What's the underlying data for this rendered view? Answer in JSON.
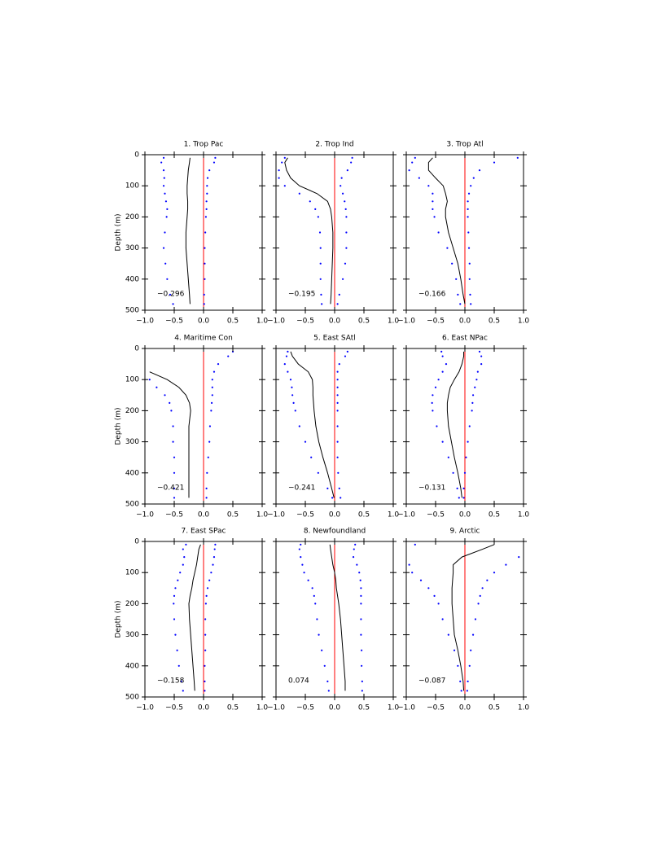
{
  "chart_data": [
    {
      "type": "line",
      "title": "1. Trop Pac",
      "annotation": "−0.296",
      "ylabel": "Depth (m)",
      "ytick_labels": true,
      "depths": [
        10,
        25,
        50,
        75,
        100,
        125,
        150,
        175,
        200,
        250,
        300,
        350,
        400,
        450,
        480
      ],
      "series": [
        {
          "color": "#0000ff",
          "style": "dotted",
          "values": [
            -0.68,
            -0.72,
            -0.68,
            -0.67,
            -0.68,
            -0.66,
            -0.64,
            -0.62,
            -0.63,
            -0.66,
            -0.68,
            -0.65,
            -0.62,
            -0.57,
            -0.52
          ]
        },
        {
          "color": "#000000",
          "style": "solid",
          "values": [
            -0.23,
            -0.24,
            -0.26,
            -0.27,
            -0.28,
            -0.28,
            -0.27,
            -0.27,
            -0.28,
            -0.3,
            -0.3,
            -0.28,
            -0.26,
            -0.24,
            -0.23
          ]
        },
        {
          "color": "#0000ff",
          "style": "dotted",
          "values": [
            0.2,
            0.18,
            0.1,
            0.07,
            0.06,
            0.06,
            0.05,
            0.05,
            0.04,
            0.03,
            0.02,
            0.02,
            0.02,
            0.01,
            0.01
          ]
        }
      ],
      "vline": 0,
      "vline_color": "#ff0000",
      "xlim": [
        -1,
        1
      ],
      "xticks": [
        {
          "value": -1,
          "label": "−1.0"
        },
        {
          "value": -0.5,
          "label": "−0.5"
        },
        {
          "value": 0,
          "label": "0.0"
        },
        {
          "value": 0.5,
          "label": "0.5"
        },
        {
          "value": 1,
          "label": "1.0"
        }
      ],
      "ylim": [
        500,
        0
      ],
      "yticks": [
        0,
        100,
        200,
        300,
        400,
        500
      ]
    },
    {
      "type": "line",
      "title": "2. Trop Ind",
      "annotation": "−0.195",
      "ytick_labels": false,
      "depths": [
        10,
        25,
        50,
        75,
        100,
        125,
        150,
        175,
        200,
        250,
        300,
        350,
        400,
        450,
        480
      ],
      "series": [
        {
          "color": "#0000ff",
          "style": "dotted",
          "values": [
            -0.85,
            -0.9,
            -0.95,
            -0.95,
            -0.85,
            -0.6,
            -0.42,
            -0.33,
            -0.28,
            -0.25,
            -0.24,
            -0.24,
            -0.24,
            -0.23,
            -0.22
          ]
        },
        {
          "color": "#000000",
          "style": "solid",
          "values": [
            -0.8,
            -0.85,
            -0.82,
            -0.75,
            -0.6,
            -0.3,
            -0.12,
            -0.07,
            -0.05,
            -0.03,
            -0.03,
            -0.04,
            -0.05,
            -0.06,
            -0.07
          ]
        },
        {
          "color": "#0000ff",
          "style": "dotted",
          "values": [
            0.3,
            0.28,
            0.22,
            0.12,
            0.1,
            0.14,
            0.17,
            0.19,
            0.2,
            0.2,
            0.2,
            0.18,
            0.14,
            0.08,
            0.05
          ]
        }
      ],
      "vline": 0,
      "vline_color": "#ff0000",
      "xlim": [
        -1,
        1
      ],
      "xticks": [
        {
          "value": -1,
          "label": "−1.0"
        },
        {
          "value": -0.5,
          "label": "−0.5"
        },
        {
          "value": 0,
          "label": "0.0"
        },
        {
          "value": 0.5,
          "label": "0.5"
        },
        {
          "value": 1,
          "label": "1.0"
        }
      ],
      "ylim": [
        500,
        0
      ],
      "yticks": [
        0,
        100,
        200,
        300,
        400,
        500
      ]
    },
    {
      "type": "line",
      "title": "3. Trop Atl",
      "annotation": "−0.166",
      "ytick_labels": false,
      "depths": [
        10,
        25,
        50,
        75,
        100,
        125,
        150,
        175,
        200,
        250,
        300,
        350,
        400,
        450,
        480
      ],
      "series": [
        {
          "color": "#0000ff",
          "style": "dotted",
          "values": [
            -0.85,
            -0.9,
            -0.95,
            -0.78,
            -0.62,
            -0.55,
            -0.55,
            -0.55,
            -0.52,
            -0.45,
            -0.3,
            -0.22,
            -0.15,
            -0.12,
            -0.08
          ]
        },
        {
          "color": "#000000",
          "style": "solid",
          "values": [
            -0.55,
            -0.62,
            -0.62,
            -0.5,
            -0.37,
            -0.33,
            -0.3,
            -0.33,
            -0.33,
            -0.28,
            -0.2,
            -0.12,
            -0.07,
            -0.03,
            0.0
          ]
        },
        {
          "color": "#0000ff",
          "style": "dotted",
          "values": [
            0.9,
            0.5,
            0.25,
            0.15,
            0.1,
            0.07,
            0.05,
            0.05,
            0.05,
            0.06,
            0.07,
            0.08,
            0.08,
            0.09,
            0.1
          ]
        }
      ],
      "vline": 0,
      "vline_color": "#ff0000",
      "xlim": [
        -1,
        1
      ],
      "xticks": [
        {
          "value": -1,
          "label": "−1.0"
        },
        {
          "value": -0.5,
          "label": "−0.5"
        },
        {
          "value": 0,
          "label": "0.0"
        },
        {
          "value": 0.5,
          "label": "0.5"
        },
        {
          "value": 1,
          "label": "1.0"
        }
      ],
      "ylim": [
        500,
        0
      ],
      "yticks": [
        0,
        100,
        200,
        300,
        400,
        500
      ]
    },
    {
      "type": "line",
      "title": "4. Maritime Con",
      "annotation": "−0.421",
      "ylabel": "Depth (m)",
      "ytick_labels": true,
      "depths": [
        10,
        25,
        50,
        75,
        100,
        125,
        150,
        175,
        200,
        250,
        300,
        350,
        400,
        450,
        480
      ],
      "series": [
        {
          "color": "#0000ff",
          "style": "dotted",
          "values": [
            null,
            null,
            null,
            null,
            -0.92,
            -0.8,
            -0.66,
            -0.58,
            -0.55,
            -0.52,
            -0.52,
            -0.5,
            -0.5,
            -0.5,
            -0.5
          ]
        },
        {
          "color": "#000000",
          "style": "solid",
          "values": [
            null,
            null,
            null,
            -0.92,
            -0.62,
            -0.42,
            -0.3,
            -0.24,
            -0.22,
            -0.25,
            -0.25,
            -0.25,
            -0.25,
            -0.25,
            -0.25
          ]
        },
        {
          "color": "#0000ff",
          "style": "dotted",
          "values": [
            0.5,
            0.42,
            0.25,
            0.18,
            0.15,
            0.15,
            0.15,
            0.14,
            0.13,
            0.11,
            0.1,
            0.08,
            0.06,
            0.05,
            0.05
          ]
        }
      ],
      "vline": 0,
      "vline_color": "#ff0000",
      "xlim": [
        -1,
        1
      ],
      "xticks": [
        {
          "value": -1,
          "label": "−1.0"
        },
        {
          "value": -0.5,
          "label": "−0.5"
        },
        {
          "value": 0,
          "label": "0.0"
        },
        {
          "value": 0.5,
          "label": "0.5"
        },
        {
          "value": 1,
          "label": "1.0"
        }
      ],
      "ylim": [
        500,
        0
      ],
      "yticks": [
        0,
        100,
        200,
        300,
        400,
        500
      ]
    },
    {
      "type": "line",
      "title": "5. East SAtl",
      "annotation": "−0.241",
      "ytick_labels": false,
      "depths": [
        10,
        25,
        50,
        75,
        100,
        125,
        150,
        175,
        200,
        250,
        300,
        350,
        400,
        450,
        480
      ],
      "series": [
        {
          "color": "#0000ff",
          "style": "dotted",
          "values": [
            -0.8,
            -0.82,
            -0.85,
            -0.8,
            -0.75,
            -0.73,
            -0.72,
            -0.7,
            -0.67,
            -0.6,
            -0.5,
            -0.4,
            -0.28,
            -0.12,
            -0.04
          ]
        },
        {
          "color": "#000000",
          "style": "solid",
          "values": [
            -0.75,
            -0.72,
            -0.62,
            -0.45,
            -0.38,
            -0.37,
            -0.37,
            -0.36,
            -0.35,
            -0.32,
            -0.27,
            -0.2,
            -0.12,
            -0.05,
            -0.01
          ]
        },
        {
          "color": "#0000ff",
          "style": "dotted",
          "values": [
            0.22,
            0.18,
            0.08,
            0.05,
            0.05,
            0.05,
            0.05,
            0.05,
            0.05,
            0.05,
            0.05,
            0.05,
            0.06,
            0.08,
            0.1
          ]
        }
      ],
      "vline": 0,
      "vline_color": "#ff0000",
      "xlim": [
        -1,
        1
      ],
      "xticks": [
        {
          "value": -1,
          "label": "−1.0"
        },
        {
          "value": -0.5,
          "label": "−0.5"
        },
        {
          "value": 0,
          "label": "0.0"
        },
        {
          "value": 0.5,
          "label": "0.5"
        },
        {
          "value": 1,
          "label": "1.0"
        }
      ],
      "ylim": [
        500,
        0
      ],
      "yticks": [
        0,
        100,
        200,
        300,
        400,
        500
      ]
    },
    {
      "type": "line",
      "title": "6. East NPac",
      "annotation": "−0.131",
      "ytick_labels": false,
      "depths": [
        10,
        25,
        50,
        75,
        100,
        125,
        150,
        175,
        200,
        250,
        300,
        350,
        400,
        450,
        480
      ],
      "series": [
        {
          "color": "#0000ff",
          "style": "dotted",
          "values": [
            -0.4,
            -0.38,
            -0.32,
            -0.38,
            -0.45,
            -0.5,
            -0.55,
            -0.56,
            -0.55,
            -0.48,
            -0.38,
            -0.28,
            -0.2,
            -0.13,
            -0.1
          ]
        },
        {
          "color": "#000000",
          "style": "solid",
          "values": [
            -0.02,
            -0.02,
            -0.05,
            -0.1,
            -0.18,
            -0.25,
            -0.28,
            -0.3,
            -0.3,
            -0.28,
            -0.23,
            -0.18,
            -0.12,
            -0.07,
            -0.05
          ]
        },
        {
          "color": "#0000ff",
          "style": "dotted",
          "values": [
            0.25,
            0.28,
            0.28,
            0.22,
            0.2,
            0.17,
            0.14,
            0.13,
            0.12,
            0.08,
            0.05,
            0.02,
            0.0,
            -0.02,
            -0.02
          ]
        }
      ],
      "vline": 0,
      "vline_color": "#ff0000",
      "xlim": [
        -1,
        1
      ],
      "xticks": [
        {
          "value": -1,
          "label": "−1.0"
        },
        {
          "value": -0.5,
          "label": "−0.5"
        },
        {
          "value": 0,
          "label": "0.0"
        },
        {
          "value": 0.5,
          "label": "0.5"
        },
        {
          "value": 1,
          "label": "1.0"
        }
      ],
      "ylim": [
        500,
        0
      ],
      "yticks": [
        0,
        100,
        200,
        300,
        400,
        500
      ]
    },
    {
      "type": "line",
      "title": "7. East SPac",
      "annotation": "−0.158",
      "ylabel": "Depth (m)",
      "ytick_labels": true,
      "depths": [
        10,
        25,
        50,
        75,
        100,
        125,
        150,
        175,
        200,
        250,
        300,
        350,
        400,
        450,
        480
      ],
      "series": [
        {
          "color": "#0000ff",
          "style": "dotted",
          "values": [
            -0.3,
            -0.35,
            -0.33,
            -0.35,
            -0.4,
            -0.44,
            -0.48,
            -0.5,
            -0.51,
            -0.5,
            -0.48,
            -0.45,
            -0.42,
            -0.38,
            -0.35
          ]
        },
        {
          "color": "#000000",
          "style": "solid",
          "values": [
            -0.05,
            -0.08,
            -0.1,
            -0.12,
            -0.15,
            -0.18,
            -0.2,
            -0.23,
            -0.25,
            -0.24,
            -0.22,
            -0.2,
            -0.18,
            -0.16,
            -0.15
          ]
        },
        {
          "color": "#0000ff",
          "style": "dotted",
          "values": [
            0.2,
            0.19,
            0.18,
            0.16,
            0.13,
            0.1,
            0.07,
            0.05,
            0.04,
            0.03,
            0.03,
            0.03,
            0.02,
            0.02,
            0.02
          ]
        }
      ],
      "vline": 0,
      "vline_color": "#ff0000",
      "xlim": [
        -1,
        1
      ],
      "xticks": [
        {
          "value": -1,
          "label": "−1.0"
        },
        {
          "value": -0.5,
          "label": "−0.5"
        },
        {
          "value": 0,
          "label": "0.0"
        },
        {
          "value": 0.5,
          "label": "0.5"
        },
        {
          "value": 1,
          "label": "1.0"
        }
      ],
      "ylim": [
        500,
        0
      ],
      "yticks": [
        0,
        100,
        200,
        300,
        400,
        500
      ]
    },
    {
      "type": "line",
      "title": "8. Newfoundland",
      "annotation": "0.074",
      "ytick_labels": false,
      "depths": [
        10,
        25,
        50,
        75,
        100,
        125,
        150,
        175,
        200,
        250,
        300,
        350,
        400,
        450,
        480
      ],
      "series": [
        {
          "color": "#0000ff",
          "style": "dotted",
          "values": [
            -0.58,
            -0.6,
            -0.58,
            -0.55,
            -0.52,
            -0.45,
            -0.38,
            -0.35,
            -0.33,
            -0.3,
            -0.27,
            -0.22,
            -0.17,
            -0.12,
            -0.1
          ]
        },
        {
          "color": "#000000",
          "style": "solid",
          "values": [
            -0.08,
            -0.07,
            -0.05,
            -0.03,
            0.0,
            0.02,
            0.03,
            0.05,
            0.07,
            0.1,
            0.12,
            0.14,
            0.16,
            0.18,
            0.18
          ]
        },
        {
          "color": "#0000ff",
          "style": "dotted",
          "values": [
            0.35,
            0.33,
            0.32,
            0.38,
            0.42,
            0.44,
            0.45,
            0.45,
            0.45,
            0.45,
            0.45,
            0.46,
            0.46,
            0.47,
            0.47
          ]
        }
      ],
      "vline": 0,
      "vline_color": "#ff0000",
      "xlim": [
        -1,
        1
      ],
      "xticks": [
        {
          "value": -1,
          "label": "−1.0"
        },
        {
          "value": -0.5,
          "label": "−0.5"
        },
        {
          "value": 0,
          "label": "0.0"
        },
        {
          "value": 0.5,
          "label": "0.5"
        },
        {
          "value": 1,
          "label": "1.0"
        }
      ],
      "ylim": [
        500,
        0
      ],
      "yticks": [
        0,
        100,
        200,
        300,
        400,
        500
      ]
    },
    {
      "type": "line",
      "title": "9. Arctic",
      "annotation": "−0.087",
      "ytick_labels": false,
      "depths": [
        10,
        25,
        50,
        75,
        100,
        125,
        150,
        175,
        200,
        250,
        300,
        350,
        400,
        450,
        480
      ],
      "series": [
        {
          "color": "#0000ff",
          "style": "dotted",
          "values": [
            -0.85,
            null,
            null,
            -0.95,
            -0.9,
            -0.75,
            -0.62,
            -0.52,
            -0.45,
            -0.38,
            -0.28,
            -0.18,
            -0.12,
            -0.08,
            -0.06
          ]
        },
        {
          "color": "#000000",
          "style": "solid",
          "values": [
            0.5,
            0.3,
            -0.05,
            -0.2,
            -0.2,
            -0.21,
            -0.22,
            -0.22,
            -0.22,
            -0.2,
            -0.18,
            -0.12,
            -0.07,
            -0.03,
            -0.02
          ]
        },
        {
          "color": "#0000ff",
          "style": "dotted",
          "values": [
            null,
            null,
            0.92,
            0.7,
            0.5,
            0.38,
            0.3,
            0.26,
            0.23,
            0.18,
            0.14,
            0.1,
            0.08,
            0.05,
            0.04
          ]
        }
      ],
      "vline": 0,
      "vline_color": "#ff0000",
      "xlim": [
        -1,
        1
      ],
      "xticks": [
        {
          "value": -1,
          "label": "−1.0"
        },
        {
          "value": -0.5,
          "label": "−0.5"
        },
        {
          "value": 0,
          "label": "0.0"
        },
        {
          "value": 0.5,
          "label": "0.5"
        },
        {
          "value": 1,
          "label": "1.0"
        }
      ],
      "ylim": [
        500,
        0
      ],
      "yticks": [
        0,
        100,
        200,
        300,
        400,
        500
      ]
    }
  ]
}
